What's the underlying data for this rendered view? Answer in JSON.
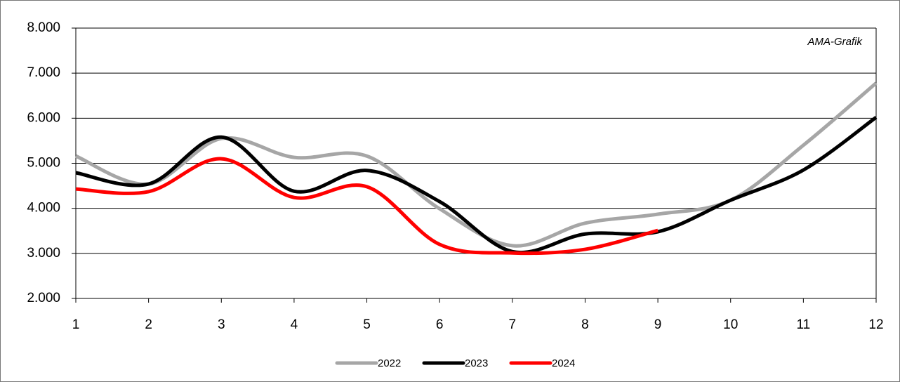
{
  "chart_data": {
    "type": "line",
    "annotation": "AMA-Grafik",
    "x": [
      1,
      2,
      3,
      4,
      5,
      6,
      7,
      8,
      9,
      10,
      11,
      12
    ],
    "xlim": [
      1,
      12
    ],
    "xticks": [
      1,
      2,
      3,
      4,
      5,
      6,
      7,
      8,
      9,
      10,
      11,
      12
    ],
    "ylim": [
      2000,
      8000
    ],
    "yticks": [
      {
        "value": 2000,
        "label": "2.000"
      },
      {
        "value": 3000,
        "label": "3.000"
      },
      {
        "value": 4000,
        "label": "4.000"
      },
      {
        "value": 5000,
        "label": "5.000"
      },
      {
        "value": 6000,
        "label": "6.000"
      },
      {
        "value": 7000,
        "label": "7.000"
      },
      {
        "value": 8000,
        "label": "8.000"
      }
    ],
    "grid": true,
    "smooth": true,
    "legend": "bottom",
    "series": [
      {
        "name": "2022",
        "color": "#a6a6a6",
        "values": [
          5160,
          4540,
          5550,
          5130,
          5160,
          3990,
          3170,
          3670,
          3870,
          4180,
          5400,
          6780
        ]
      },
      {
        "name": "2023",
        "color": "#000000",
        "values": [
          4790,
          4540,
          5580,
          4380,
          4840,
          4150,
          3040,
          3430,
          3480,
          4180,
          4850,
          6020
        ]
      },
      {
        "name": "2024",
        "color": "#ff0000",
        "values": [
          4430,
          4370,
          5100,
          4240,
          4480,
          3200,
          3010,
          3090,
          3510,
          null,
          null,
          null
        ]
      }
    ]
  }
}
